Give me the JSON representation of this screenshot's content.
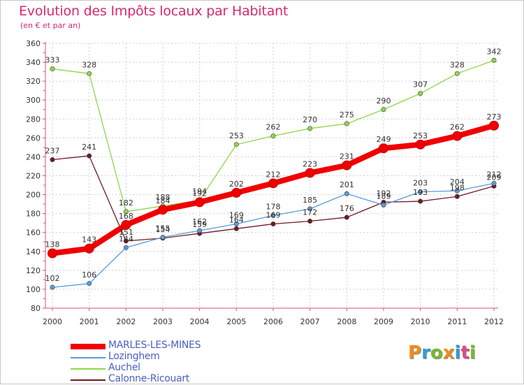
{
  "header": {
    "title": "Evolution des Impôts locaux par Habitant",
    "subtitle": "(en € et par an)"
  },
  "brand": {
    "logo_text": [
      "P",
      "r",
      "o",
      "x",
      "i",
      "t",
      "i"
    ],
    "logo_colors": [
      "#f08a1e",
      "#2a9fd8",
      "#7ab82e",
      "#f08a1e",
      "#2a9fd8",
      "#e04a86",
      "#7ab82e"
    ]
  },
  "chart_data": {
    "type": "line",
    "title": "Evolution des Impôts locaux par Habitant",
    "subtitle": "(en € et par an)",
    "xlabel": "",
    "ylabel": "",
    "x": [
      "2000",
      "2001",
      "2002",
      "2003",
      "2004",
      "2005",
      "2006",
      "2007",
      "2008",
      "2009",
      "2010",
      "2011",
      "2012"
    ],
    "ylim": [
      80,
      360
    ],
    "yticks": [
      80,
      100,
      120,
      140,
      160,
      180,
      200,
      220,
      240,
      260,
      280,
      300,
      320,
      340,
      360
    ],
    "grid": true,
    "legend_position": "bottom-left",
    "series": [
      {
        "name": "Calonne-Ricouart",
        "color": "#6e1a24",
        "values": [
          237,
          241,
          151,
          154,
          159,
          164,
          169,
          172,
          176,
          192,
          193,
          198,
          209
        ]
      },
      {
        "name": "Lozinghem",
        "color": "#5c9ad8",
        "values": [
          102,
          106,
          144,
          155,
          162,
          169,
          178,
          185,
          201,
          189,
          203,
          204,
          212
        ]
      },
      {
        "name": "Auchel",
        "color": "#8fd64a",
        "values": [
          333,
          328,
          182,
          188,
          194,
          253,
          262,
          270,
          275,
          290,
          307,
          328,
          342
        ]
      },
      {
        "name": "MARLES-LES-MINES",
        "color": "#f00000",
        "values": [
          138,
          143,
          168,
          184,
          192,
          202,
          212,
          223,
          231,
          249,
          253,
          262,
          273
        ]
      }
    ],
    "legend_order": [
      "MARLES-LES-MINES",
      "Lozinghem",
      "Auchel",
      "Calonne-Ricouart"
    ]
  }
}
